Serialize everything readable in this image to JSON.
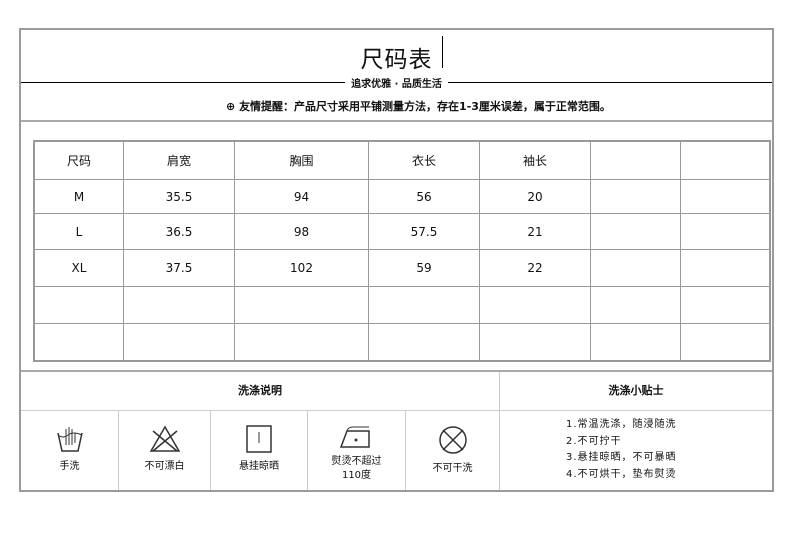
{
  "header": {
    "title": "尺码表",
    "slogan": "追求优雅 · 品质生活",
    "notice_icon": "circle-plus-icon",
    "notice": "友情提醒：产品尺寸采用平铺测量方法，存在1-3厘米误差，属于正常范围。"
  },
  "size_table": {
    "headers": [
      "尺码",
      "肩宽",
      "胸围",
      "衣长",
      "袖长",
      "",
      ""
    ],
    "rows": [
      [
        "M",
        "35.5",
        "94",
        "56",
        "20",
        "",
        ""
      ],
      [
        "L",
        "36.5",
        "98",
        "57.5",
        "21",
        "",
        ""
      ],
      [
        "XL",
        "37.5",
        "102",
        "59",
        "22",
        "",
        ""
      ],
      [
        "",
        "",
        "",
        "",
        "",
        "",
        ""
      ],
      [
        "",
        "",
        "",
        "",
        "",
        "",
        ""
      ]
    ]
  },
  "care": {
    "instructions_title": "洗涤说明",
    "tips_title": "洗涤小贴士",
    "icons": [
      {
        "icon": "hand-wash-icon",
        "label": "手洗"
      },
      {
        "icon": "no-bleach-icon",
        "label": "不可漂白"
      },
      {
        "icon": "line-dry-icon",
        "label": "悬挂晾晒"
      },
      {
        "icon": "iron-icon",
        "label": "熨烫不超过",
        "label2": "110度"
      },
      {
        "icon": "no-dry-clean-icon",
        "label": "不可干洗"
      }
    ],
    "tips": [
      "1.常温洗涤，随浸随洗",
      "2.不可拧干",
      "3.悬挂晾晒，不可暴晒",
      "4.不可烘干，垫布熨烫"
    ]
  }
}
